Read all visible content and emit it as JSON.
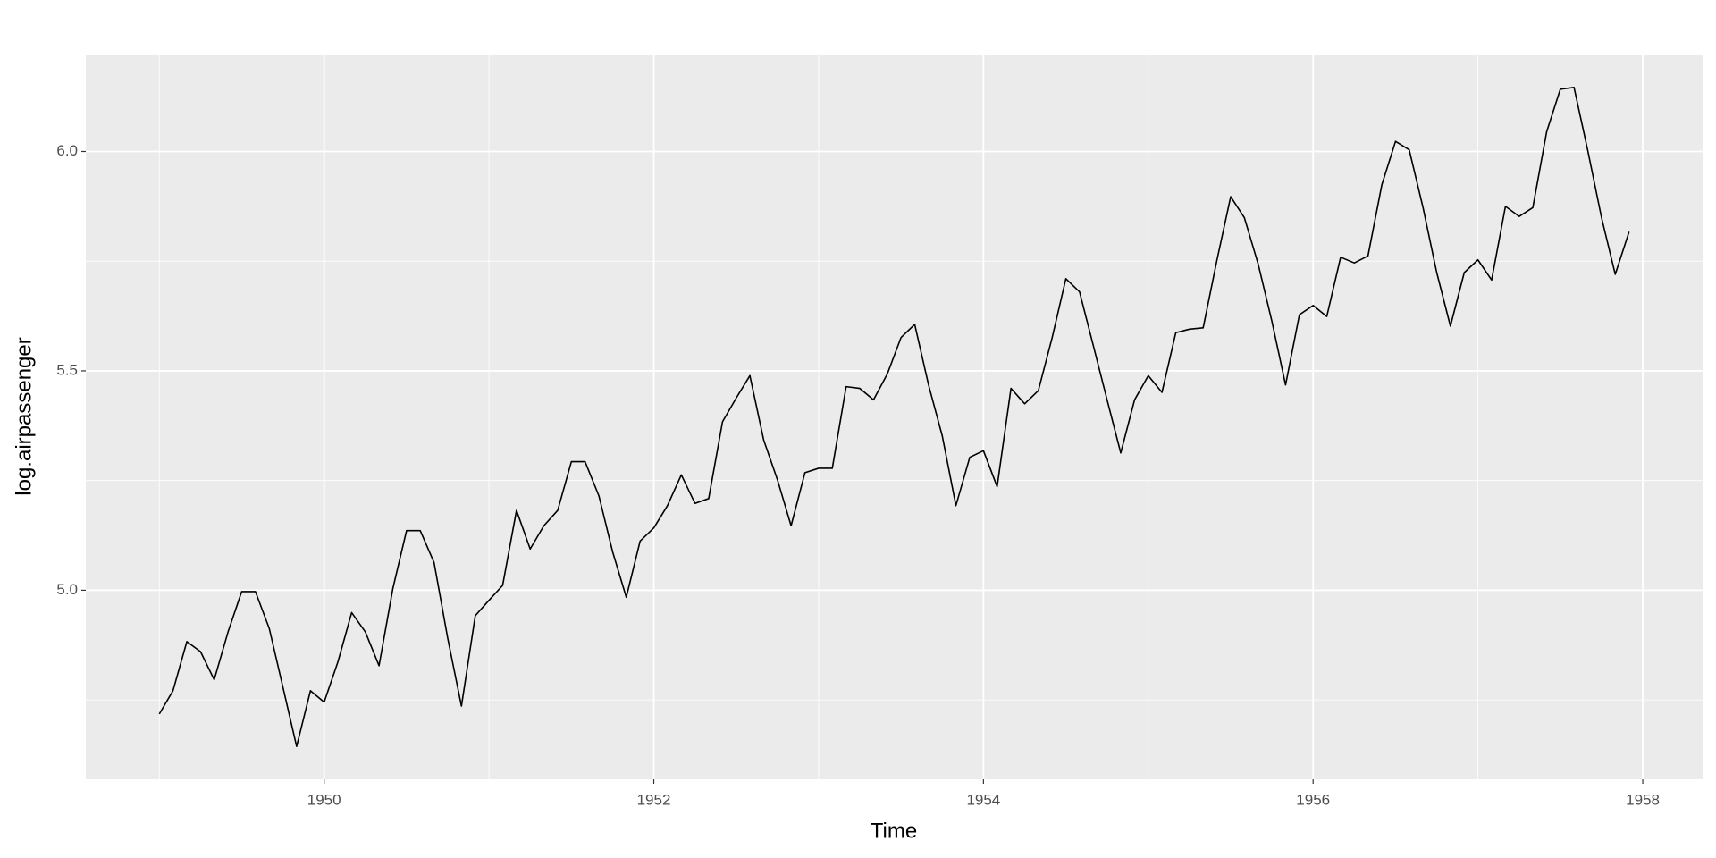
{
  "chart_data": {
    "type": "line",
    "xlabel": "Time",
    "ylabel": "log.airpassenger",
    "x": [
      1949,
      1949.083,
      1949.167,
      1949.25,
      1949.333,
      1949.417,
      1949.5,
      1949.583,
      1949.667,
      1949.75,
      1949.833,
      1949.917,
      1950,
      1950.083,
      1950.167,
      1950.25,
      1950.333,
      1950.417,
      1950.5,
      1950.583,
      1950.667,
      1950.75,
      1950.833,
      1950.917,
      1951,
      1951.083,
      1951.167,
      1951.25,
      1951.333,
      1951.417,
      1951.5,
      1951.583,
      1951.667,
      1951.75,
      1951.833,
      1951.917,
      1952,
      1952.083,
      1952.167,
      1952.25,
      1952.333,
      1952.417,
      1952.5,
      1952.583,
      1952.667,
      1952.75,
      1952.833,
      1952.917,
      1953,
      1953.083,
      1953.167,
      1953.25,
      1953.333,
      1953.417,
      1953.5,
      1953.583,
      1953.667,
      1953.75,
      1953.833,
      1953.917,
      1954,
      1954.083,
      1954.167,
      1954.25,
      1954.333,
      1954.417,
      1954.5,
      1954.583,
      1954.667,
      1954.75,
      1954.833,
      1954.917,
      1955,
      1955.083,
      1955.167,
      1955.25,
      1955.333,
      1955.417,
      1955.5,
      1955.583,
      1955.667,
      1955.75,
      1955.833,
      1955.917,
      1956,
      1956.083,
      1956.167,
      1956.25,
      1956.333,
      1956.417,
      1956.5,
      1956.583,
      1956.667,
      1956.75,
      1956.833,
      1956.917,
      1957,
      1957.083,
      1957.167,
      1957.25,
      1957.333,
      1957.417,
      1957.5,
      1957.583,
      1957.667,
      1957.75,
      1957.833,
      1957.917
    ],
    "series": [
      {
        "color": "#000000",
        "values": [
          4.718,
          4.771,
          4.883,
          4.86,
          4.796,
          4.905,
          4.997,
          4.997,
          4.913,
          4.779,
          4.644,
          4.771,
          4.745,
          4.836,
          4.949,
          4.905,
          4.828,
          5.004,
          5.136,
          5.136,
          5.063,
          4.89,
          4.736,
          4.942,
          4.977,
          5.011,
          5.182,
          5.094,
          5.147,
          5.182,
          5.293,
          5.293,
          5.215,
          5.088,
          4.984,
          5.112,
          5.142,
          5.193,
          5.263,
          5.198,
          5.209,
          5.384,
          5.438,
          5.489,
          5.342,
          5.252,
          5.147,
          5.268,
          5.278,
          5.278,
          5.464,
          5.46,
          5.434,
          5.493,
          5.576,
          5.606,
          5.468,
          5.352,
          5.193,
          5.303,
          5.318,
          5.236,
          5.46,
          5.425,
          5.455,
          5.576,
          5.71,
          5.68,
          5.557,
          5.434,
          5.313,
          5.434,
          5.489,
          5.451,
          5.587,
          5.595,
          5.598,
          5.753,
          5.897,
          5.849,
          5.743,
          5.613,
          5.468,
          5.628,
          5.649,
          5.624,
          5.759,
          5.746,
          5.762,
          5.924,
          6.023,
          6.004,
          5.872,
          5.724,
          5.602,
          5.724,
          5.753,
          5.707,
          5.875,
          5.852,
          5.872,
          6.045,
          6.142,
          6.146,
          6.001,
          5.849,
          5.72,
          5.817
        ]
      }
    ],
    "xlim": [
      1948.554,
      1958.363
    ],
    "xticks": [
      1950,
      1952,
      1954,
      1956,
      1958
    ],
    "xminor": [
      1949,
      1951,
      1953,
      1955,
      1957
    ],
    "ylim": [
      4.569,
      6.221
    ],
    "yticks": [
      {
        "value": 5,
        "label": "5.0"
      },
      5.5,
      {
        "value": 6,
        "label": "6.0"
      }
    ],
    "yminor": [
      4.75,
      5.25,
      5.75
    ],
    "grid": true
  }
}
